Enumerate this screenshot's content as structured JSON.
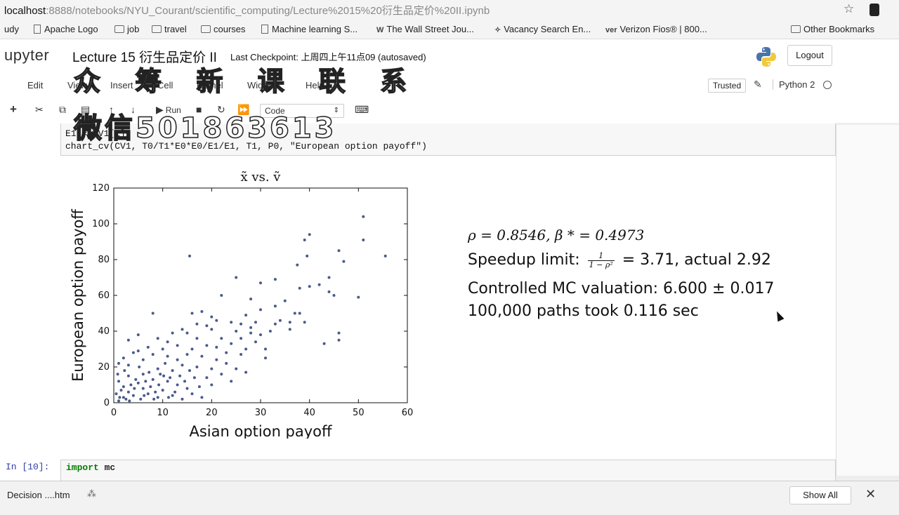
{
  "browser": {
    "url_host": "localhost",
    "url_path": ":8888/notebooks/NYU_Courant/scientific_computing/Lecture%2015%20衍生品定价%20II.ipynb",
    "bookmarks": [
      "udy",
      "Apache Logo",
      "job",
      "travel",
      "courses",
      "Machine learning S...",
      "The Wall Street Jou...",
      "Vacancy Search En...",
      "Verizon Fios® | 800...",
      "Other Bookmarks"
    ],
    "verizon_glyph": "ver"
  },
  "jupyter": {
    "logo": "upyter",
    "notebook_title": "Lecture 15 衍生品定价 II",
    "checkpoint": "Last Checkpoint: 上周四上午11点09  (autosaved)",
    "logout": "Logout",
    "menu": [
      "Edit",
      "View",
      "Insert",
      "Cell",
      "Kernel",
      "Widgets",
      "Help"
    ],
    "trusted": "Trusted",
    "kernel": "Python 2",
    "toolbar": {
      "run": "Run",
      "cell_type": "Code"
    }
  },
  "watermark": {
    "line1": "众 筹 新 课 联 系",
    "line2": "微信501863613"
  },
  "cells": {
    "cell1_code": [
      "E1 = CV1[1]",
      "chart_cv(CV1, T0/T1*E0*E0/E1/E1, T1, P0, \"European option payoff\")"
    ],
    "cell2_prompt": "In [10]:",
    "cell2_code_kw": "import",
    "cell2_code_rest": " mc"
  },
  "output": {
    "rho_line": "ρ = 0.8546,  β * = 0.4973",
    "speedup_label": "Speedup limit:",
    "frac_num": "1",
    "frac_den": "1 − ρ²",
    "speedup_rest": " =  3.71, actual 2.92",
    "controlled": "Controlled MC valuation: 6.600 ± 0.017",
    "paths": "100,000 paths took 0.116 sec"
  },
  "downloads": {
    "item": "Decision ....htm",
    "show_all": "Show All"
  },
  "chart_data": {
    "type": "scatter",
    "title": "x̃ vs. ṽ",
    "xlabel": "Asian option payoff",
    "ylabel": "European option payoff",
    "xlim": [
      0,
      60
    ],
    "ylim": [
      0,
      120
    ],
    "xticks": [
      0,
      10,
      20,
      30,
      40,
      50,
      60
    ],
    "yticks": [
      0,
      20,
      40,
      60,
      80,
      100,
      120
    ],
    "color": "#4a5a8c",
    "points": [
      [
        51,
        104
      ],
      [
        40,
        94
      ],
      [
        51,
        91
      ],
      [
        39,
        91
      ],
      [
        46,
        85
      ],
      [
        15.5,
        82
      ],
      [
        55.5,
        82
      ],
      [
        47,
        79
      ],
      [
        39.5,
        82
      ],
      [
        37.5,
        77
      ],
      [
        25,
        70
      ],
      [
        44,
        70
      ],
      [
        33,
        69
      ],
      [
        42,
        66
      ],
      [
        38,
        64
      ],
      [
        45,
        60
      ],
      [
        30,
        67
      ],
      [
        40,
        65
      ],
      [
        28,
        58
      ],
      [
        35,
        57
      ],
      [
        50,
        59
      ],
      [
        44,
        62
      ],
      [
        22,
        60
      ],
      [
        33,
        54
      ],
      [
        30,
        52
      ],
      [
        27,
        49
      ],
      [
        37,
        50
      ],
      [
        8,
        50
      ],
      [
        16,
        50
      ],
      [
        18,
        51
      ],
      [
        20,
        48
      ],
      [
        21,
        46
      ],
      [
        24,
        45
      ],
      [
        26,
        44
      ],
      [
        29,
        45
      ],
      [
        33,
        44
      ],
      [
        36,
        45
      ],
      [
        39,
        45
      ],
      [
        43,
        33
      ],
      [
        46,
        35
      ],
      [
        46,
        39
      ],
      [
        28,
        39
      ],
      [
        25,
        40
      ],
      [
        20,
        41
      ],
      [
        14,
        41
      ],
      [
        12,
        39
      ],
      [
        5,
        38
      ],
      [
        3,
        35
      ],
      [
        9,
        36
      ],
      [
        17,
        36
      ],
      [
        22,
        36
      ],
      [
        24,
        33
      ],
      [
        31,
        25
      ],
      [
        27,
        30
      ],
      [
        19,
        32
      ],
      [
        16,
        30
      ],
      [
        13,
        32
      ],
      [
        10,
        30
      ],
      [
        7,
        31
      ],
      [
        4,
        28
      ],
      [
        2,
        25
      ],
      [
        1,
        22
      ],
      [
        6,
        24
      ],
      [
        11,
        26
      ],
      [
        15,
        27
      ],
      [
        18,
        26
      ],
      [
        21,
        24
      ],
      [
        23,
        22
      ],
      [
        26,
        27
      ],
      [
        29,
        34
      ],
      [
        17,
        20
      ],
      [
        14,
        21
      ],
      [
        12,
        18
      ],
      [
        9,
        19
      ],
      [
        6,
        16
      ],
      [
        3,
        15
      ],
      [
        1,
        12
      ],
      [
        2,
        9
      ],
      [
        5,
        11
      ],
      [
        8,
        13
      ],
      [
        11,
        12
      ],
      [
        13,
        10
      ],
      [
        15,
        8
      ],
      [
        10,
        7
      ],
      [
        7,
        5
      ],
      [
        4,
        4
      ],
      [
        2,
        3
      ],
      [
        1,
        1
      ],
      [
        3,
        6
      ],
      [
        6,
        8
      ],
      [
        9,
        3
      ],
      [
        12,
        4
      ],
      [
        14,
        2
      ],
      [
        16,
        5
      ],
      [
        18,
        3
      ],
      [
        20,
        10
      ],
      [
        19,
        14
      ],
      [
        22,
        16
      ],
      [
        25,
        19
      ],
      [
        27,
        17
      ],
      [
        0.5,
        5
      ],
      [
        1.5,
        7
      ],
      [
        2.5,
        2
      ],
      [
        3.5,
        10
      ],
      [
        4.5,
        13
      ],
      [
        5.5,
        2
      ],
      [
        6.5,
        12
      ],
      [
        7.5,
        9
      ],
      [
        8.5,
        6
      ],
      [
        9.5,
        16
      ],
      [
        10.5,
        22
      ],
      [
        11.5,
        14
      ],
      [
        12.5,
        6
      ],
      [
        13.5,
        15
      ],
      [
        14.5,
        12
      ],
      [
        15.5,
        18
      ],
      [
        16.5,
        14
      ],
      [
        17.5,
        9
      ],
      [
        0.8,
        16
      ],
      [
        1.2,
        3
      ],
      [
        2.2,
        18
      ],
      [
        3.2,
        1
      ],
      [
        4.2,
        8
      ],
      [
        5.2,
        20
      ],
      [
        6.2,
        4
      ],
      [
        7.2,
        17
      ],
      [
        8.2,
        2
      ],
      [
        9.2,
        10
      ],
      [
        10.2,
        15
      ],
      [
        11.2,
        3
      ],
      [
        23,
        28
      ],
      [
        24,
        12
      ],
      [
        20,
        19
      ],
      [
        21,
        31
      ],
      [
        26,
        36
      ],
      [
        28,
        42
      ],
      [
        30,
        38
      ],
      [
        32,
        40
      ],
      [
        34,
        46
      ],
      [
        38,
        50
      ],
      [
        36,
        41
      ],
      [
        31,
        30
      ],
      [
        19,
        43
      ],
      [
        17,
        44
      ],
      [
        15,
        39
      ],
      [
        13,
        24
      ],
      [
        11,
        34
      ],
      [
        8,
        27
      ],
      [
        5,
        29
      ],
      [
        3,
        21
      ]
    ]
  }
}
